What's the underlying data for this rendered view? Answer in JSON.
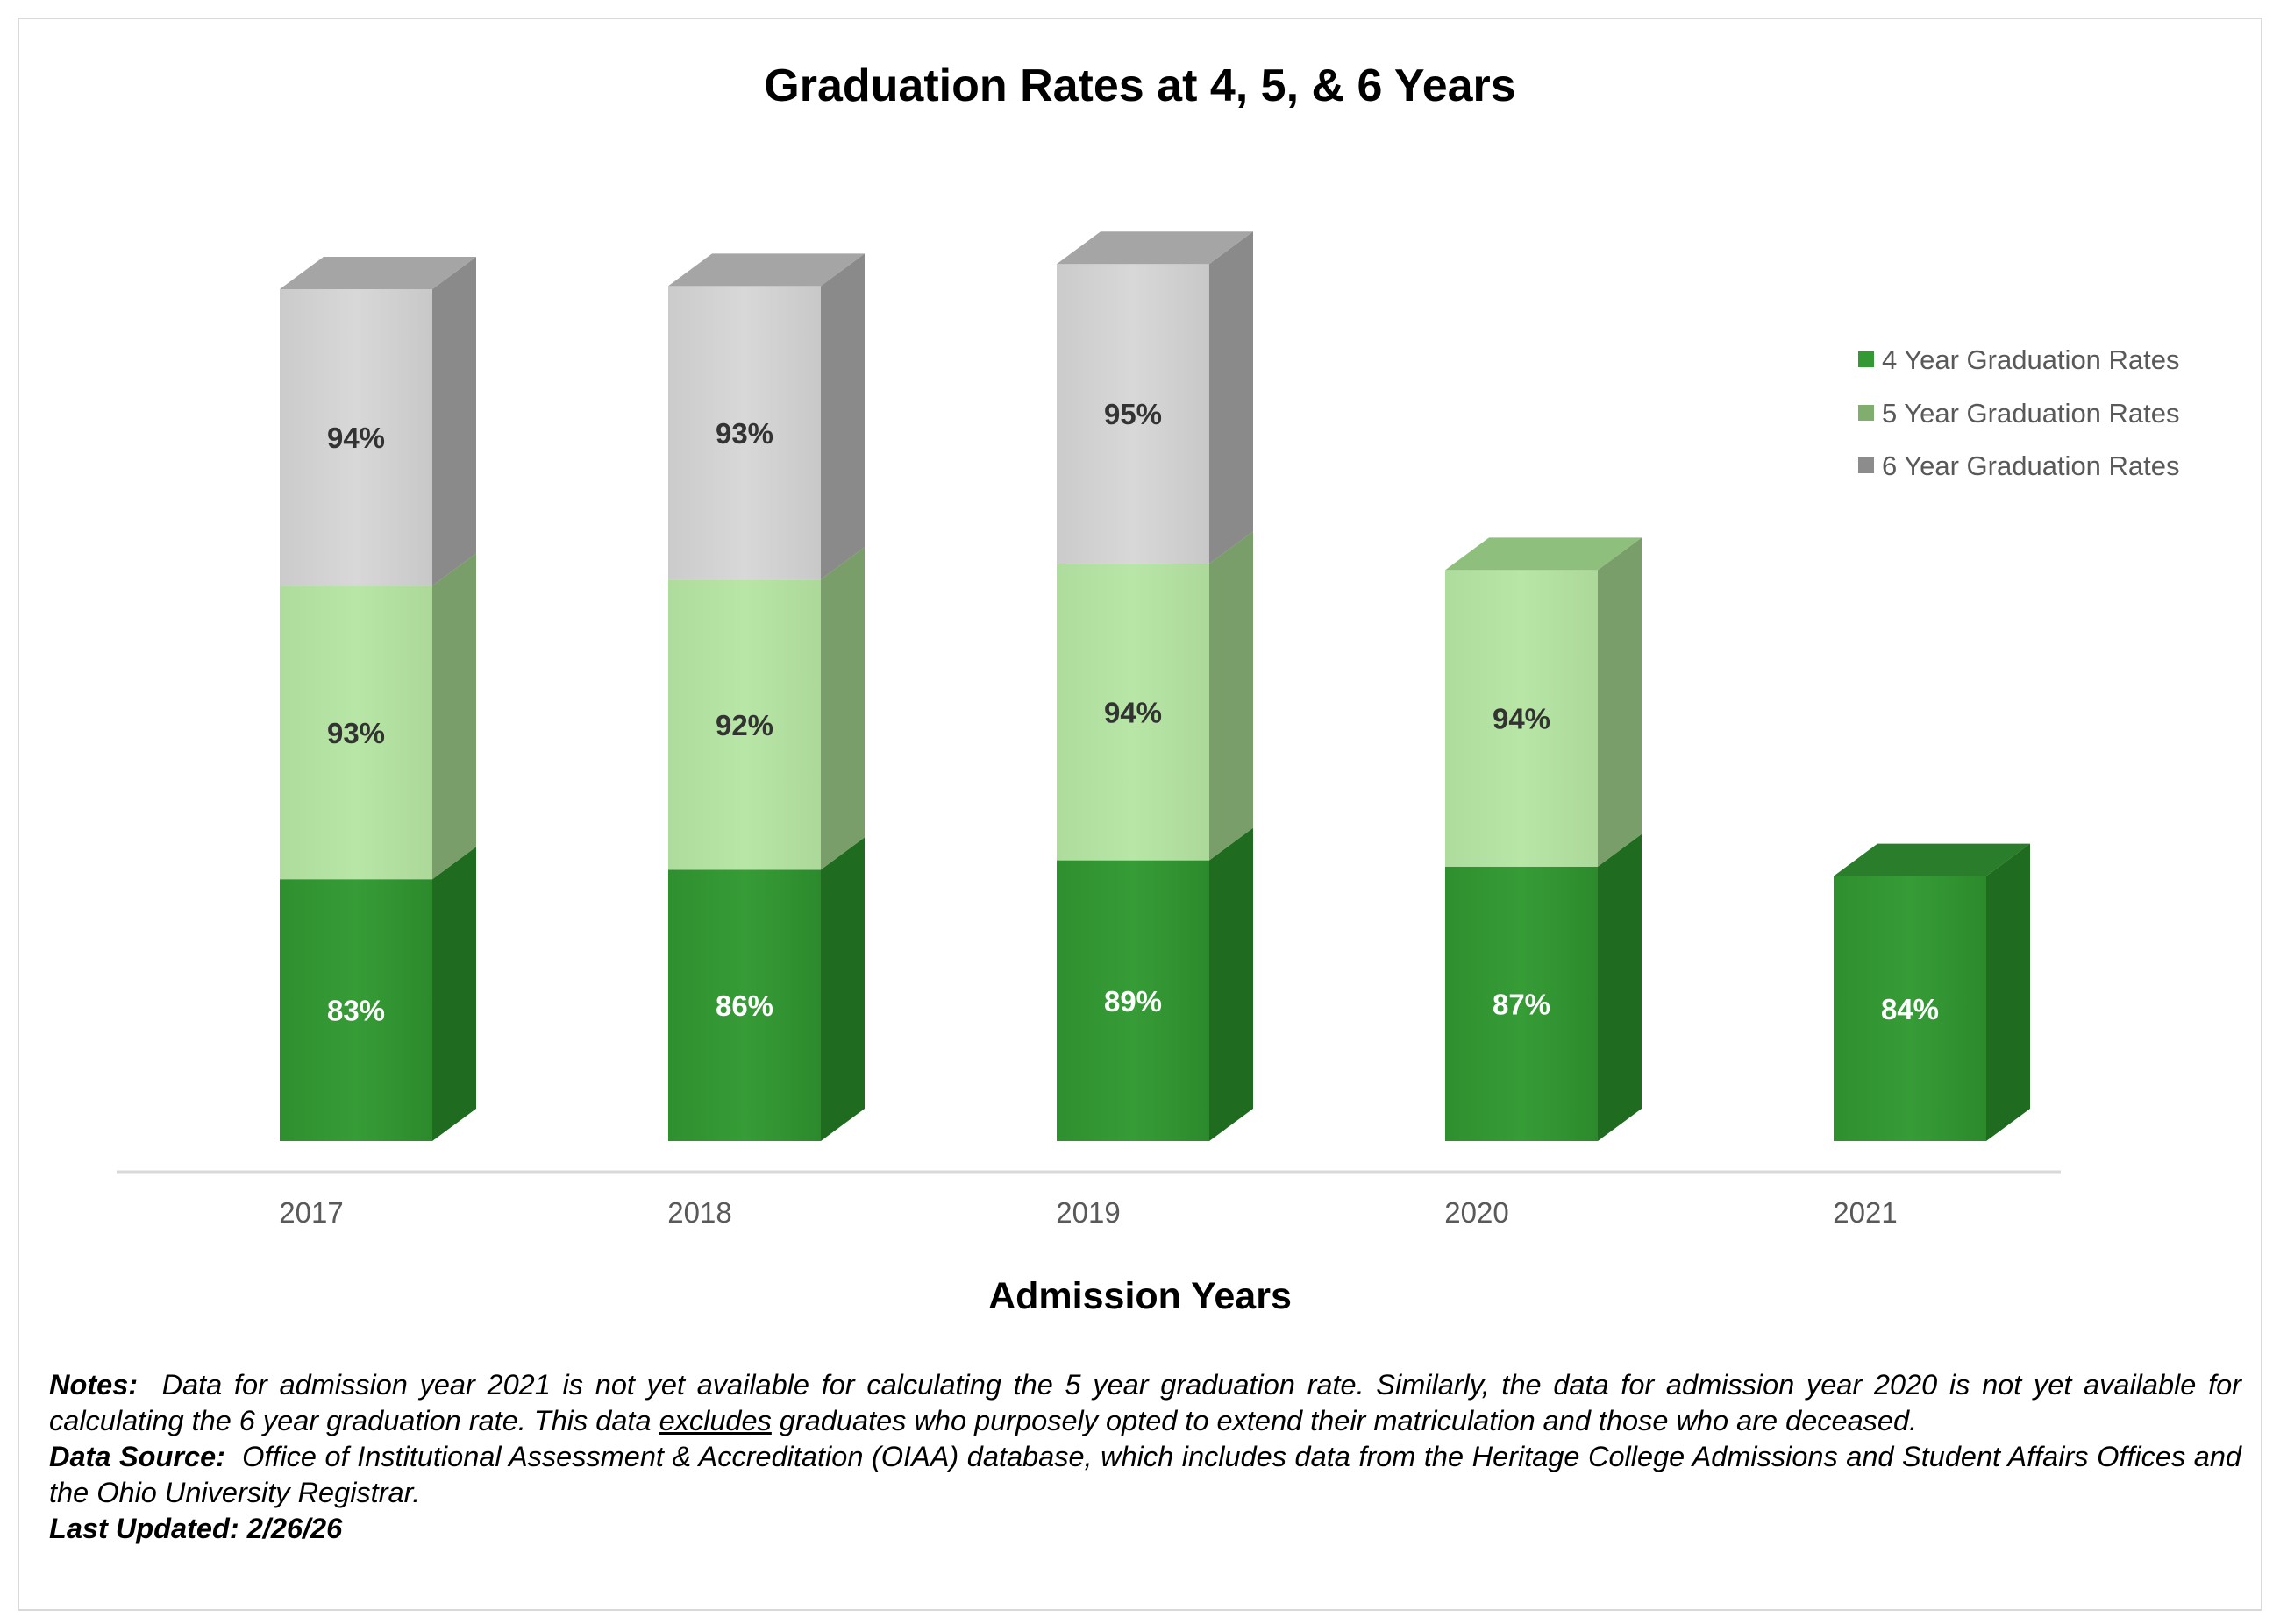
{
  "chart_data": {
    "type": "bar",
    "stacked_3d": true,
    "title": "Graduation Rates at 4, 5, & 6 Years",
    "xlabel": "Admission Years",
    "ylabel": "",
    "categories": [
      "2017",
      "2018",
      "2019",
      "2020",
      "2021"
    ],
    "series": [
      {
        "name": "4 Year Graduation Rates",
        "values": [
          83,
          86,
          89,
          87,
          84
        ],
        "color": "#339933",
        "label_color": "#ffffff"
      },
      {
        "name": "5 Year Graduation Rates",
        "values": [
          93,
          92,
          94,
          94,
          null
        ],
        "color": "#b5e4a3",
        "label_color": "#333333"
      },
      {
        "name": "6 Year Graduation Rates",
        "values": [
          94,
          93,
          95,
          null,
          null
        ],
        "color": "#d3d3d3",
        "label_color": "#333333"
      }
    ],
    "value_format": "percent",
    "grid": false,
    "legend_position": "right"
  },
  "notes": {
    "notes_label": "Notes:",
    "notes_text_1": "Data for admission year 2021 is not yet available for calculating the 5 year graduation rate. Similarly, the data for admission year 2020 is not yet available for calculating the 6 year graduation rate. This data",
    "notes_emphasis": "excludes",
    "notes_text_2": "graduates who purposely opted to extend their matriculation and those who are deceased.",
    "source_label": "Data Source:",
    "source_text": "Office of Institutional Assessment & Accreditation (OIAA) database, which includes data from the Heritage College Admissions and Student Affairs Offices and the Ohio University Registrar.",
    "updated_label": "Last Updated:",
    "updated_value": "2/26/26"
  }
}
